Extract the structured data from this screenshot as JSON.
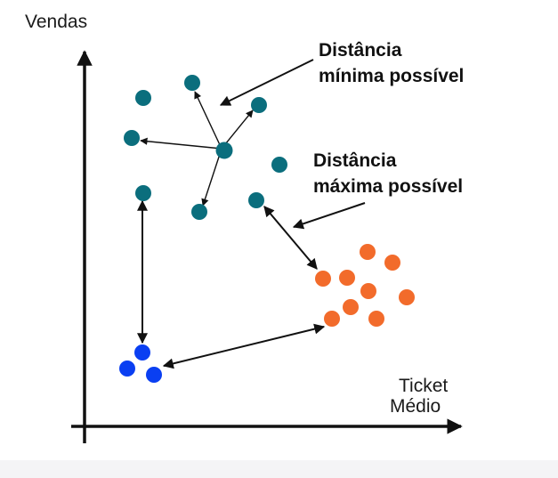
{
  "axes": {
    "y_label": "Vendas",
    "x_label_line1": "Ticket",
    "x_label_line2": "Médio"
  },
  "callouts": {
    "min_line1": "Distância",
    "min_line2": "mínima possível",
    "max_line1": "Distância",
    "max_line2": "máxima possível"
  },
  "colors": {
    "teal": "#0b6e7d",
    "orange": "#f26b2b",
    "blue": "#0a3ff2",
    "ink": "#111111"
  },
  "clusters": [
    {
      "name": "teal-cluster",
      "color": "teal",
      "points": 9
    },
    {
      "name": "orange-cluster",
      "color": "orange",
      "points": 9
    },
    {
      "name": "blue-cluster",
      "color": "blue",
      "points": 3
    }
  ]
}
